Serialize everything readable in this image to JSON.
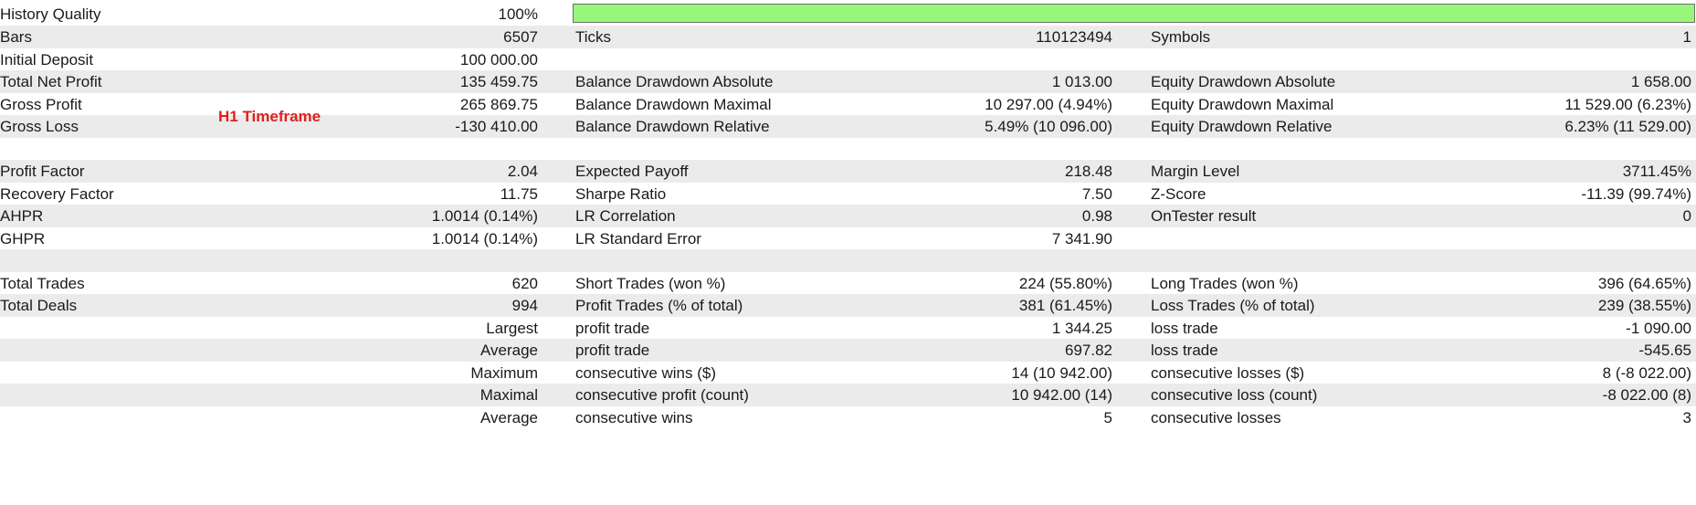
{
  "annotation": "H1 Timeframe",
  "colors": {
    "row_shade": "#ebebeb",
    "quality_fill": "#96f77a",
    "annotation": "#e0201e"
  },
  "history_quality": {
    "label": "History Quality",
    "value": "100%",
    "fill_percent": 100
  },
  "rows": [
    {
      "shade": true,
      "c1l": "Bars",
      "c1r": "6507",
      "c2l": "Ticks",
      "c2r": "110123494",
      "c3l": "Symbols",
      "c3r": "1"
    },
    {
      "shade": false,
      "c1l": "Initial Deposit",
      "c1r": "100 000.00",
      "c2l": "",
      "c2r": "",
      "c3l": "",
      "c3r": ""
    },
    {
      "shade": true,
      "c1l": "Total Net Profit",
      "c1r": "135 459.75",
      "c2l": "Balance Drawdown Absolute",
      "c2r": "1 013.00",
      "c3l": "Equity Drawdown Absolute",
      "c3r": "1 658.00"
    },
    {
      "shade": false,
      "c1l": "Gross Profit",
      "c1r": "265 869.75",
      "c2l": "Balance Drawdown Maximal",
      "c2r": "10 297.00 (4.94%)",
      "c3l": "Equity Drawdown Maximal",
      "c3r": "11 529.00 (6.23%)"
    },
    {
      "shade": true,
      "c1l": "Gross Loss",
      "c1r": "-130 410.00",
      "c2l": "Balance Drawdown Relative",
      "c2r": "5.49% (10 096.00)",
      "c3l": "Equity Drawdown Relative",
      "c3r": "6.23% (11 529.00)"
    },
    {
      "shade": false,
      "c1l": "",
      "c1r": "",
      "c2l": "",
      "c2r": "",
      "c3l": "",
      "c3r": ""
    },
    {
      "shade": true,
      "c1l": "Profit Factor",
      "c1r": "2.04",
      "c2l": "Expected Payoff",
      "c2r": "218.48",
      "c3l": "Margin Level",
      "c3r": "3711.45%"
    },
    {
      "shade": false,
      "c1l": "Recovery Factor",
      "c1r": "11.75",
      "c2l": "Sharpe Ratio",
      "c2r": "7.50",
      "c3l": "Z-Score",
      "c3r": "-11.39 (99.74%)"
    },
    {
      "shade": true,
      "c1l": "AHPR",
      "c1r": "1.0014 (0.14%)",
      "c2l": "LR Correlation",
      "c2r": "0.98",
      "c3l": "OnTester result",
      "c3r": "0"
    },
    {
      "shade": false,
      "c1l": "GHPR",
      "c1r": "1.0014 (0.14%)",
      "c2l": "LR Standard Error",
      "c2r": "7 341.90",
      "c3l": "",
      "c3r": ""
    },
    {
      "shade": true,
      "c1l": "",
      "c1r": "",
      "c2l": "",
      "c2r": "",
      "c3l": "",
      "c3r": ""
    },
    {
      "shade": false,
      "c1l": "Total Trades",
      "c1r": "620",
      "c2l": "Short Trades (won %)",
      "c2r": "224 (55.80%)",
      "c3l": "Long Trades (won %)",
      "c3r": "396 (64.65%)"
    },
    {
      "shade": true,
      "c1l": "Total Deals",
      "c1r": "994",
      "c2l": "Profit Trades (% of total)",
      "c2r": "381 (61.45%)",
      "c3l": "Loss Trades (% of total)",
      "c3r": "239 (38.55%)"
    },
    {
      "shade": false,
      "c1l": "",
      "c1r": "Largest",
      "c2l": "profit trade",
      "c2r": "1 344.25",
      "c3l": "loss trade",
      "c3r": "-1 090.00"
    },
    {
      "shade": true,
      "c1l": "",
      "c1r": "Average",
      "c2l": "profit trade",
      "c2r": "697.82",
      "c3l": "loss trade",
      "c3r": "-545.65"
    },
    {
      "shade": false,
      "c1l": "",
      "c1r": "Maximum",
      "c2l": "consecutive wins ($)",
      "c2r": "14 (10 942.00)",
      "c3l": "consecutive losses ($)",
      "c3r": "8 (-8 022.00)"
    },
    {
      "shade": true,
      "c1l": "",
      "c1r": "Maximal",
      "c2l": "consecutive profit (count)",
      "c2r": "10 942.00 (14)",
      "c3l": "consecutive loss (count)",
      "c3r": "-8 022.00 (8)"
    },
    {
      "shade": false,
      "c1l": "",
      "c1r": "Average",
      "c2l": "consecutive wins",
      "c2r": "5",
      "c3l": "consecutive losses",
      "c3r": "3"
    }
  ]
}
